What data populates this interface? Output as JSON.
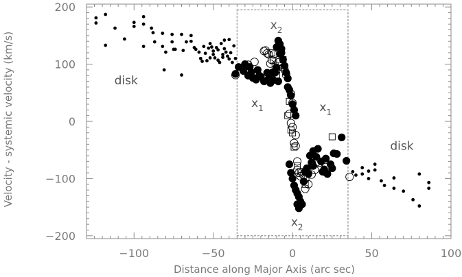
{
  "chart_data": {
    "type": "scatter",
    "xlabel": "Distance along Major Axis (arc sec)",
    "ylabel": "Velocity - systemic velocity (km/s)",
    "xlim": [
      -130,
      100
    ],
    "ylim": [
      -205,
      205
    ],
    "xticks": [
      -100,
      -50,
      0,
      50,
      100
    ],
    "yticks": [
      -200,
      -100,
      0,
      100,
      200
    ],
    "xtick_labels": [
      "−100",
      "−50",
      "0",
      "50",
      "100"
    ],
    "ytick_labels": [
      "−200",
      "−100",
      "0",
      "100",
      "200"
    ],
    "box": {
      "x": [
        -35,
        35
      ],
      "y": [
        -200,
        195
      ]
    },
    "annotations": [
      {
        "text": "disk",
        "x": -105,
        "y": 65
      },
      {
        "text": "disk",
        "x": 69,
        "y": -50
      },
      {
        "text": "x",
        "sub": "1",
        "x": -26,
        "y": 25
      },
      {
        "text": "x",
        "sub": "1",
        "x": 17,
        "y": 18
      },
      {
        "text": "x",
        "sub": "2",
        "x": -14,
        "y": 162
      },
      {
        "text": "x",
        "sub": "2",
        "x": -1,
        "y": -183
      }
    ],
    "series": [
      {
        "marker": "small-dot",
        "points": [
          [
            -124,
            181
          ],
          [
            -124,
            172
          ],
          [
            -118,
            187
          ],
          [
            -118,
            133
          ],
          [
            -112,
            163
          ],
          [
            -106,
            144
          ],
          [
            -100,
            173
          ],
          [
            -100,
            166
          ],
          [
            -94,
            183
          ],
          [
            -94,
            170
          ],
          [
            -94,
            131
          ],
          [
            -89,
            163
          ],
          [
            -88,
            155
          ],
          [
            -87,
            139
          ],
          [
            -82,
            154
          ],
          [
            -82,
            131
          ],
          [
            -81,
            90
          ],
          [
            -80,
            121
          ],
          [
            -76,
            152
          ],
          [
            -76,
            139
          ],
          [
            -75,
            126
          ],
          [
            -74,
            126
          ],
          [
            -70,
            152
          ],
          [
            -70,
            81
          ],
          [
            -69,
            124
          ],
          [
            -67,
            139
          ],
          [
            -64,
            150
          ],
          [
            -64,
            140
          ],
          [
            -62,
            129
          ],
          [
            -61,
            126
          ],
          [
            -59,
            121
          ],
          [
            -58,
            110
          ],
          [
            -57,
            105
          ],
          [
            -56,
            131
          ],
          [
            -55,
            119
          ],
          [
            -54,
            106
          ],
          [
            -53,
            128
          ],
          [
            -52,
            136
          ],
          [
            -52,
            111
          ],
          [
            -51,
            130
          ],
          [
            -50,
            123
          ],
          [
            -50,
            117
          ],
          [
            -49,
            111
          ],
          [
            -48,
            129
          ],
          [
            -47,
            125
          ],
          [
            -47,
            107
          ],
          [
            -46,
            103
          ],
          [
            -45,
            136
          ],
          [
            -44,
            112
          ],
          [
            -44,
            117
          ],
          [
            -43,
            142
          ],
          [
            -43,
            127
          ],
          [
            -42,
            121
          ],
          [
            -41,
            114
          ],
          [
            -40,
            109
          ],
          [
            -40,
            143
          ],
          [
            -39,
            120
          ],
          [
            -38,
            103
          ],
          [
            -37,
            132
          ],
          [
            -36,
            110
          ],
          [
            -35,
            97
          ],
          [
            38,
            -88
          ],
          [
            40,
            -94
          ],
          [
            44,
            -81
          ],
          [
            44,
            -92
          ],
          [
            48,
            -87
          ],
          [
            48,
            -100
          ],
          [
            52,
            -85
          ],
          [
            52,
            -75
          ],
          [
            56,
            -104
          ],
          [
            58,
            -112
          ],
          [
            64,
            -99
          ],
          [
            64,
            -117
          ],
          [
            70,
            -122
          ],
          [
            76,
            -137
          ],
          [
            80,
            -92
          ],
          [
            80,
            -148
          ],
          [
            86,
            -107
          ],
          [
            86,
            -117
          ]
        ]
      },
      {
        "marker": "filled-circle",
        "points": [
          [
            -36,
            83
          ],
          [
            -34,
            95
          ],
          [
            -31,
            88
          ],
          [
            -30,
            100
          ],
          [
            -28,
            80
          ],
          [
            -27,
            95
          ],
          [
            -26,
            86
          ],
          [
            -25,
            76
          ],
          [
            -23,
            73
          ],
          [
            -22,
            90
          ],
          [
            -21,
            80
          ],
          [
            -20,
            78
          ],
          [
            -18,
            70
          ],
          [
            -16,
            85
          ],
          [
            -15,
            75
          ],
          [
            -14,
            67
          ],
          [
            -13,
            85
          ],
          [
            -12,
            72
          ],
          [
            -11,
            85
          ],
          [
            -10,
            94
          ],
          [
            -9,
            141
          ],
          [
            -8,
            135
          ],
          [
            -8,
            118
          ],
          [
            -7,
            127
          ],
          [
            -6,
            108
          ],
          [
            -5,
            97
          ],
          [
            -4,
            85
          ],
          [
            -3,
            75
          ],
          [
            -3,
            60
          ],
          [
            -2,
            55
          ],
          [
            -1,
            45
          ],
          [
            0,
            30
          ],
          [
            1,
            20
          ],
          [
            2,
            10
          ],
          [
            -2,
            -75
          ],
          [
            -1,
            -90
          ],
          [
            0,
            -100
          ],
          [
            1,
            -112
          ],
          [
            2,
            -120
          ],
          [
            3,
            -126
          ],
          [
            4,
            -132
          ],
          [
            5,
            -140
          ],
          [
            6,
            -145
          ],
          [
            4,
            -152
          ],
          [
            3,
            -145
          ],
          [
            7,
            -105
          ],
          [
            8,
            -88
          ],
          [
            9,
            -82
          ],
          [
            10,
            -92
          ],
          [
            11,
            -60
          ],
          [
            12,
            -72
          ],
          [
            13,
            -78
          ],
          [
            13,
            -52
          ],
          [
            15,
            -62
          ],
          [
            16,
            -48
          ],
          [
            18,
            -70
          ],
          [
            19,
            -88
          ],
          [
            20,
            -84
          ],
          [
            21,
            -65
          ],
          [
            22,
            -92
          ],
          [
            24,
            -75
          ],
          [
            25,
            -82
          ],
          [
            26,
            -56
          ],
          [
            28,
            -57
          ],
          [
            31,
            -28
          ],
          [
            34,
            -69
          ],
          [
            -9,
            70
          ],
          [
            -10,
            130
          ],
          [
            -7,
            120
          ]
        ]
      },
      {
        "marker": "open-circle",
        "points": [
          [
            -36,
            81
          ],
          [
            -28,
            99
          ],
          [
            -24,
            104
          ],
          [
            -23,
            84
          ],
          [
            -18,
            123
          ],
          [
            -17,
            124
          ],
          [
            -16,
            119
          ],
          [
            -15,
            117
          ],
          [
            -14,
            101
          ],
          [
            -13,
            107
          ],
          [
            -12,
            117
          ],
          [
            -9,
            103
          ],
          [
            -6,
            94
          ],
          [
            -5,
            90
          ],
          [
            -4,
            81
          ],
          [
            -1,
            48
          ],
          [
            0,
            32
          ],
          [
            -2,
            13
          ],
          [
            -1,
            -3
          ],
          [
            0,
            -10
          ],
          [
            2,
            -24
          ],
          [
            1,
            -38
          ],
          [
            2,
            -43
          ],
          [
            3,
            -70
          ],
          [
            3,
            -85
          ],
          [
            4,
            -90
          ],
          [
            5,
            -96
          ],
          [
            6,
            -89
          ],
          [
            7,
            -95
          ],
          [
            8,
            -101
          ],
          [
            10,
            -110
          ],
          [
            8,
            -118
          ],
          [
            12,
            -93
          ],
          [
            14,
            -85
          ],
          [
            15,
            -72
          ],
          [
            17,
            -72
          ],
          [
            20,
            -88
          ],
          [
            21,
            -80
          ],
          [
            36,
            -97
          ]
        ]
      },
      {
        "marker": "open-square",
        "points": [
          [
            -13,
            120
          ],
          [
            -12,
            107
          ],
          [
            -11,
            98
          ],
          [
            -10,
            90
          ],
          [
            -10,
            80
          ],
          [
            -6,
            108
          ],
          [
            -5,
            95
          ],
          [
            -2,
            35
          ],
          [
            -3,
            10
          ],
          [
            -1,
            -15
          ],
          [
            0,
            -20
          ],
          [
            1,
            -45
          ],
          [
            3,
            -78
          ],
          [
            5,
            -88
          ],
          [
            8,
            -110
          ],
          [
            25,
            -27
          ]
        ]
      }
    ]
  }
}
